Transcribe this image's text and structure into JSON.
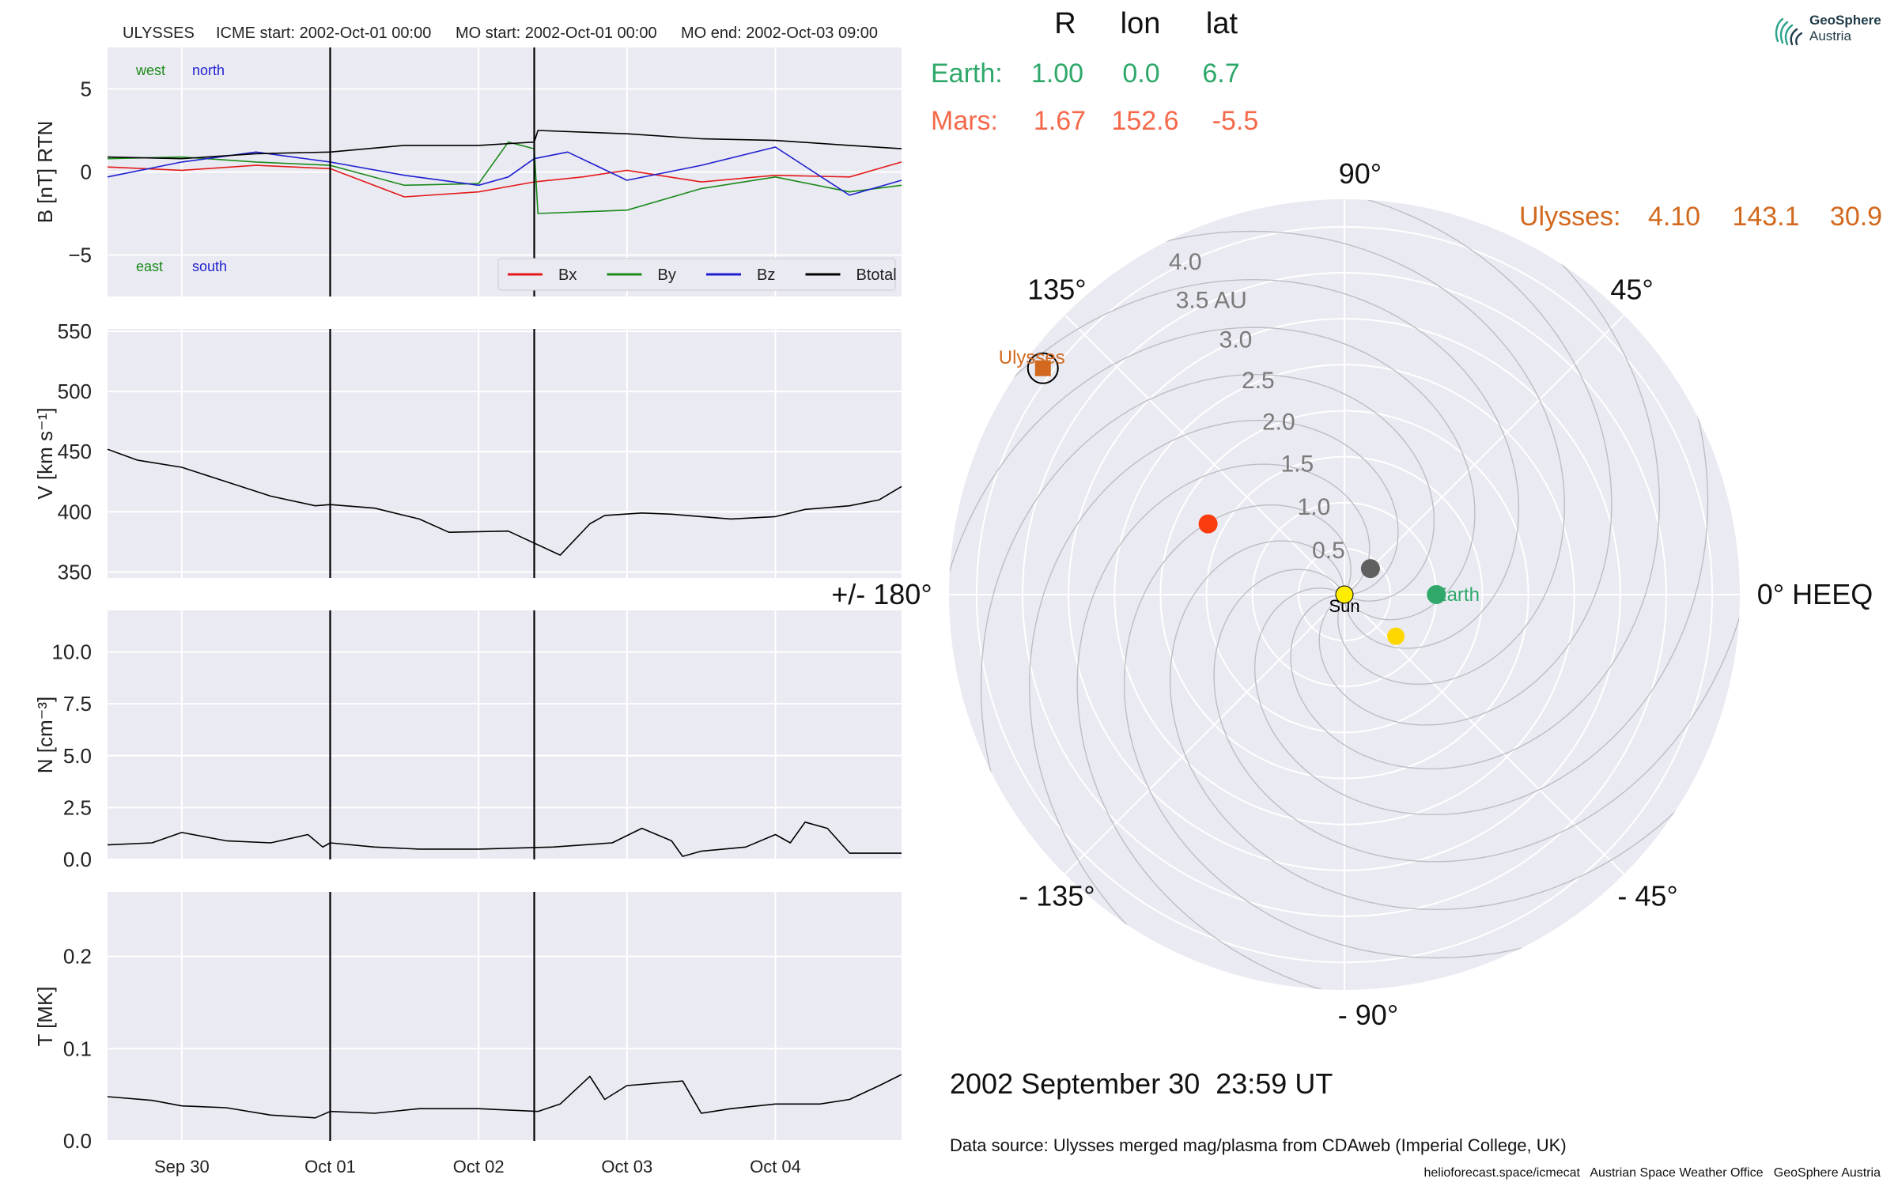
{
  "brand": {
    "name": "GeoSphere",
    "sub": "Austria",
    "logo_icon": "geosphere-logo-icon"
  },
  "header": {
    "spacecraft": "ULYSSES",
    "icme_start": "ICME start: 2002-Oct-01 00:00",
    "mo_start": "MO start: 2002-Oct-01 00:00",
    "mo_end": "MO end: 2002-Oct-03 09:00"
  },
  "footer": {
    "timestamp": "2002 September 30  23:59 UT",
    "data_source": "Data source: Ulysses merged mag/plasma from CDAweb (Imperial College, UK)",
    "credits": "helioforecast.space/icmecat   Austrian Space Weather Office   GeoSphere Austria"
  },
  "positions_table": {
    "columns": [
      "R",
      "lon",
      "lat"
    ],
    "rows": [
      {
        "label": "Earth:",
        "r": "1.00",
        "lon": "0.0",
        "lat": "6.7",
        "color": "#2fa86a"
      },
      {
        "label": "Mars:",
        "r": "1.67",
        "lon": "152.6",
        "lat": "-5.5",
        "color": "#f4694a"
      },
      {
        "label": "Ulysses:",
        "r": "4.10",
        "lon": "143.1",
        "lat": "30.9",
        "color": "#d2691e"
      }
    ]
  },
  "chart_data": [
    {
      "type": "line",
      "ylabel": "B [nT] RTN",
      "ylim": [
        -7.5,
        7.5
      ],
      "yticks": [
        {
          "v": 5,
          "label": "5"
        },
        {
          "v": 0,
          "label": "0"
        },
        {
          "v": -5,
          "label": "−5"
        }
      ],
      "xlim": [
        -0.5,
        4.85
      ],
      "xticks": [
        {
          "v": 0,
          "label": "Sep 30"
        },
        {
          "v": 1,
          "label": "Oct 01"
        },
        {
          "v": 2,
          "label": "Oct 02"
        },
        {
          "v": 3,
          "label": "Oct 03"
        },
        {
          "v": 4,
          "label": "Oct 04"
        }
      ],
      "x_unit": "days after 2002-Sep-30 00:00",
      "vlines": [
        1.0,
        2.375
      ],
      "corner_labels": [
        {
          "text": "west",
          "pos": "top-left",
          "color": "#1a8a1a"
        },
        {
          "text": "north",
          "pos": "top-left-2",
          "color": "#1f1fd0"
        },
        {
          "text": "east",
          "pos": "bottom-left",
          "color": "#1a8a1a"
        },
        {
          "text": "south",
          "pos": "bottom-left-2",
          "color": "#1f1fd0"
        }
      ],
      "legend": "bottom-right",
      "series": [
        {
          "name": "Bx",
          "color": "#e41a1a",
          "x": [
            -0.5,
            0,
            0.5,
            1,
            1.5,
            2,
            2.375,
            2.7,
            3,
            3.5,
            4,
            4.5,
            4.85
          ],
          "values": [
            0.3,
            0.1,
            0.4,
            0.2,
            -1.5,
            -1.2,
            -0.6,
            -0.3,
            0.1,
            -0.6,
            -0.2,
            -0.3,
            0.6
          ]
        },
        {
          "name": "By",
          "color": "#1a8a1a",
          "x": [
            -0.5,
            0,
            0.5,
            1,
            1.5,
            2,
            2.2,
            2.375,
            2.4,
            3,
            3.5,
            4,
            4.5,
            4.85
          ],
          "values": [
            0.8,
            0.9,
            0.6,
            0.4,
            -0.8,
            -0.7,
            1.8,
            1.4,
            -2.5,
            -2.3,
            -1.0,
            -0.3,
            -1.2,
            -0.8
          ]
        },
        {
          "name": "Bz",
          "color": "#1f1fd0",
          "x": [
            -0.5,
            0,
            0.5,
            1,
            1.5,
            2,
            2.2,
            2.375,
            2.6,
            3,
            3.5,
            4,
            4.5,
            4.85
          ],
          "values": [
            -0.3,
            0.6,
            1.2,
            0.6,
            -0.2,
            -0.8,
            -0.3,
            0.8,
            1.2,
            -0.5,
            0.4,
            1.5,
            -1.4,
            -0.5
          ]
        },
        {
          "name": "Btotal",
          "color": "#000000",
          "x": [
            -0.5,
            0,
            0.5,
            1,
            1.5,
            2,
            2.375,
            2.4,
            3,
            3.5,
            4,
            4.5,
            4.85
          ],
          "values": [
            0.9,
            0.8,
            1.1,
            1.2,
            1.6,
            1.6,
            1.8,
            2.5,
            2.3,
            2.0,
            1.9,
            1.6,
            1.4
          ]
        }
      ]
    },
    {
      "type": "line",
      "ylabel": "V [km s⁻¹]",
      "ylim": [
        345,
        552
      ],
      "yticks": [
        {
          "v": 550,
          "label": "550"
        },
        {
          "v": 500,
          "label": "500"
        },
        {
          "v": 450,
          "label": "450"
        },
        {
          "v": 400,
          "label": "400"
        },
        {
          "v": 350,
          "label": "350"
        }
      ],
      "xlim": [
        -0.5,
        4.85
      ],
      "vlines": [
        1.0,
        2.375
      ],
      "series": [
        {
          "name": "",
          "color": "#000000",
          "x": [
            -0.5,
            -0.3,
            0,
            0.3,
            0.6,
            0.9,
            1,
            1.3,
            1.6,
            1.8,
            2.2,
            2.55,
            2.75,
            2.85,
            3.1,
            3.3,
            3.5,
            3.7,
            4.0,
            4.2,
            4.5,
            4.7,
            4.85
          ],
          "values": [
            452,
            443,
            437,
            425,
            413,
            405,
            406,
            403,
            394,
            383,
            384,
            364,
            390,
            397,
            399,
            398,
            396,
            394,
            396,
            402,
            405,
            410,
            421
          ]
        }
      ]
    },
    {
      "type": "line",
      "ylabel": "N [cm⁻³]",
      "ylim": [
        0,
        12
      ],
      "yticks": [
        {
          "v": 10,
          "label": "10.0"
        },
        {
          "v": 7.5,
          "label": "7.5"
        },
        {
          "v": 5,
          "label": "5.0"
        },
        {
          "v": 2.5,
          "label": "2.5"
        },
        {
          "v": 0,
          "label": "0.0"
        }
      ],
      "xlim": [
        -0.5,
        4.85
      ],
      "vlines": [
        1.0,
        2.375
      ],
      "series": [
        {
          "name": "",
          "color": "#000000",
          "x": [
            -0.5,
            -0.2,
            0,
            0.3,
            0.6,
            0.85,
            0.95,
            1,
            1.3,
            1.6,
            2.0,
            2.5,
            2.9,
            3.1,
            3.3,
            3.375,
            3.5,
            3.8,
            4.0,
            4.1,
            4.2,
            4.35,
            4.5,
            4.85
          ],
          "values": [
            0.7,
            0.8,
            1.3,
            0.9,
            0.8,
            1.2,
            0.6,
            0.8,
            0.6,
            0.5,
            0.5,
            0.6,
            0.8,
            1.5,
            0.9,
            0.15,
            0.4,
            0.6,
            1.2,
            0.8,
            1.8,
            1.5,
            0.3,
            0.3
          ]
        }
      ]
    },
    {
      "type": "line",
      "ylabel": "T [MK]",
      "ylim": [
        0,
        0.27
      ],
      "yticks": [
        {
          "v": 0.2,
          "label": "0.2"
        },
        {
          "v": 0.1,
          "label": "0.1"
        },
        {
          "v": 0.0,
          "label": "0.0"
        }
      ],
      "xlim": [
        -0.5,
        4.85
      ],
      "vlines": [
        1.0,
        2.375
      ],
      "series": [
        {
          "name": "",
          "color": "#000000",
          "x": [
            -0.5,
            -0.2,
            0,
            0.3,
            0.6,
            0.9,
            1,
            1.3,
            1.6,
            2.0,
            2.4,
            2.55,
            2.75,
            2.85,
            3.0,
            3.375,
            3.5,
            3.7,
            4.0,
            4.3,
            4.5,
            4.7,
            4.85
          ],
          "values": [
            0.048,
            0.044,
            0.038,
            0.036,
            0.028,
            0.025,
            0.032,
            0.03,
            0.035,
            0.035,
            0.032,
            0.04,
            0.07,
            0.045,
            0.06,
            0.065,
            0.03,
            0.035,
            0.04,
            0.04,
            0.045,
            0.06,
            0.072
          ]
        }
      ]
    },
    {
      "type": "scatter",
      "subtype": "polar",
      "rmax": 4.3,
      "rticks": [
        {
          "v": 0.5,
          "label": "0.5"
        },
        {
          "v": 1.0,
          "label": "1.0"
        },
        {
          "v": 1.5,
          "label": "1.5"
        },
        {
          "v": 2.0,
          "label": "2.0"
        },
        {
          "v": 2.5,
          "label": "2.5"
        },
        {
          "v": 3.0,
          "label": "3.0"
        },
        {
          "v": 3.5,
          "label": "3.5 AU"
        },
        {
          "v": 4.0,
          "label": "4.0"
        }
      ],
      "angle_labels": [
        {
          "deg": 0,
          "label": "0° HEEQ"
        },
        {
          "deg": 45,
          "label": "45°"
        },
        {
          "deg": 90,
          "label": "90°"
        },
        {
          "deg": 135,
          "label": "135°"
        },
        {
          "deg": 180,
          "label": "+/- 180°"
        },
        {
          "deg": 225,
          "label": "- 135°"
        },
        {
          "deg": 270,
          "label": "- 90°"
        },
        {
          "deg": 315,
          "label": "- 45°"
        }
      ],
      "points": [
        {
          "name": "Sun",
          "r": 0.0,
          "lon": 0,
          "color": "#ffee00",
          "marker": "circle",
          "label": "Sun",
          "label_color": "#000000"
        },
        {
          "name": "Earth",
          "r": 1.0,
          "lon": 0.0,
          "color": "#2fa86a",
          "marker": "circle",
          "label": "Earth",
          "label_color": "#2fa86a"
        },
        {
          "name": "Mars",
          "r": 1.67,
          "lon": 152.6,
          "color": "#fa3c0f",
          "marker": "circle",
          "label": "",
          "label_color": ""
        },
        {
          "name": "Ulysses",
          "r": 4.1,
          "lon": 143.1,
          "color": "#d2691e",
          "marker": "square",
          "label": "Ulysses",
          "label_color": "#d2691e"
        },
        {
          "name": "Mercury",
          "r": 0.4,
          "lon": 45,
          "color": "#606060",
          "marker": "circle",
          "label": "",
          "label_color": ""
        },
        {
          "name": "Venus",
          "r": 0.72,
          "lon": -39,
          "color": "#ffd700",
          "marker": "circle",
          "label": "",
          "label_color": ""
        }
      ]
    }
  ]
}
